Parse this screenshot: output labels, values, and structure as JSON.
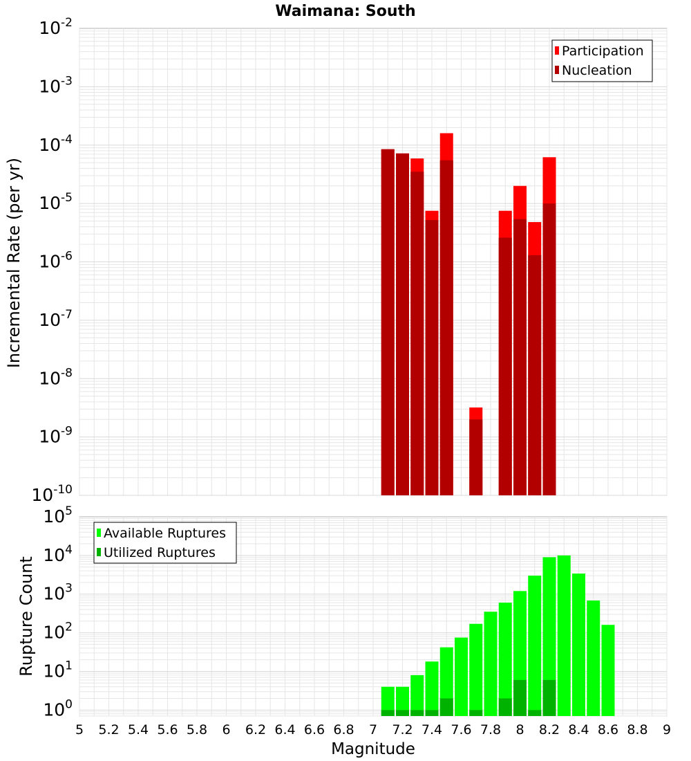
{
  "title": "Waimana: South",
  "xlabel": "Magnitude",
  "x_tick_labels": [
    "5",
    "5.2",
    "5.4",
    "5.6",
    "5.8",
    "6",
    "6.2",
    "6.4",
    "6.6",
    "6.8",
    "7",
    "7.2",
    "7.4",
    "7.6",
    "7.8",
    "8",
    "8.2",
    "8.4",
    "8.6",
    "8.8",
    "9"
  ],
  "colors": {
    "participation": "#ff0000",
    "nucleation": "#b20000",
    "available": "#00ff00",
    "utilized": "#00b200",
    "grid": "#e6e6e6",
    "axis": "#b0b0b0"
  },
  "chart_data": [
    {
      "type": "bar",
      "title": "Waimana: South",
      "xlabel": "Magnitude",
      "ylabel": "Incremental Rate (per yr)",
      "yscale": "log",
      "xlim": [
        5,
        9
      ],
      "ylim": [
        1e-10,
        0.01
      ],
      "y_tick_bases": [
        "10",
        "10",
        "10",
        "10",
        "10",
        "10",
        "10",
        "10",
        "10"
      ],
      "y_tick_exponents": [
        "-10",
        "-9",
        "-8",
        "-7",
        "-6",
        "-5",
        "-4",
        "-3",
        "-2"
      ],
      "legend": {
        "position": "top-right",
        "entries": [
          "Participation",
          "Nucleation"
        ]
      },
      "x": [
        7.1,
        7.2,
        7.3,
        7.4,
        7.5,
        7.7,
        7.9,
        8.0,
        8.1,
        8.2
      ],
      "series": [
        {
          "name": "Participation",
          "values": [
            8.5e-05,
            7.2e-05,
            5.9e-05,
            7.5e-06,
            0.00016,
            3.2e-09,
            7.5e-06,
            2e-05,
            4.8e-06,
            6.2e-05
          ]
        },
        {
          "name": "Nucleation",
          "values": [
            8.5e-05,
            7.2e-05,
            3.5e-05,
            5.2e-06,
            5.5e-05,
            2e-09,
            2.6e-06,
            5.4e-06,
            1.3e-06,
            1e-05
          ]
        }
      ]
    },
    {
      "type": "bar",
      "xlabel": "Magnitude",
      "ylabel": "Rupture Count",
      "yscale": "log",
      "xlim": [
        5,
        9
      ],
      "ylim": [
        0.7,
        100000
      ],
      "y_tick_bases": [
        "10",
        "10",
        "10",
        "10",
        "10",
        "10"
      ],
      "y_tick_exponents": [
        "0",
        "1",
        "2",
        "3",
        "4",
        "5"
      ],
      "legend": {
        "position": "top-left",
        "entries": [
          "Available Ruptures",
          "Utilized Ruptures"
        ]
      },
      "x": [
        7.1,
        7.2,
        7.3,
        7.4,
        7.5,
        7.6,
        7.7,
        7.8,
        7.9,
        8.0,
        8.1,
        8.2,
        8.3,
        8.4,
        8.5,
        8.6
      ],
      "series": [
        {
          "name": "Available Ruptures",
          "values": [
            4,
            4,
            8,
            18,
            42,
            75,
            170,
            350,
            600,
            1200,
            3000,
            9000,
            10000,
            3400,
            680,
            160
          ]
        },
        {
          "name": "Utilized Ruptures",
          "values": [
            1,
            1,
            1,
            1,
            2,
            0,
            1,
            0,
            2,
            6,
            1,
            6,
            0,
            0,
            0,
            0
          ]
        }
      ]
    }
  ]
}
